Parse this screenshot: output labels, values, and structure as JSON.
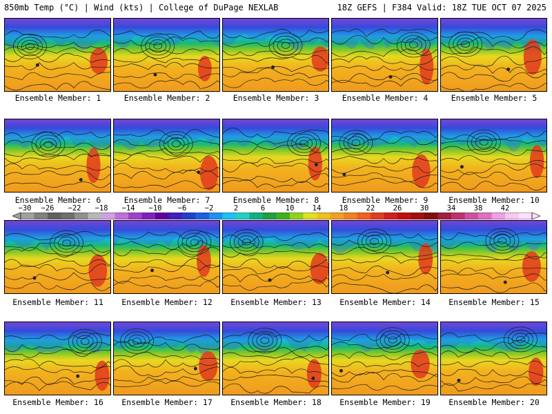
{
  "header": {
    "left": "850mb Temp (°C) | Wind (kts) | College of DuPage NEXLAB",
    "right": "18Z GEFS | F384 Valid: 18Z TUE OCT 07 2025"
  },
  "members": [
    "Ensemble Member: 1",
    "Ensemble Member: 2",
    "Ensemble Member: 3",
    "Ensemble Member: 4",
    "Ensemble Member: 5",
    "Ensemble Member: 6",
    "Ensemble Member: 7",
    "Ensemble Member: 8",
    "Ensemble Member: 9",
    "Ensemble Member: 10",
    "Ensemble Member: 11",
    "Ensemble Member: 12",
    "Ensemble Member: 13",
    "Ensemble Member: 14",
    "Ensemble Member: 15",
    "Ensemble Member: 16",
    "Ensemble Member: 17",
    "Ensemble Member: 18",
    "Ensemble Member: 19",
    "Ensemble Member: 20"
  ],
  "colorbar": {
    "tick_labels": [
      "−30",
      "−26",
      "−22",
      "−18",
      "−14",
      "−10",
      "−6",
      "−2",
      "2",
      "6",
      "10",
      "14",
      "18",
      "22",
      "26",
      "30",
      "34",
      "38",
      "42"
    ],
    "colors": [
      "#a0a0a0",
      "#808080",
      "#606060",
      "#707070",
      "#909090",
      "#b8b8b8",
      "#d0a0e0",
      "#c070d8",
      "#a040c8",
      "#8020c0",
      "#6000a0",
      "#4020c0",
      "#2040d0",
      "#2060e0",
      "#2090f0",
      "#20c0f0",
      "#20d0c0",
      "#10b080",
      "#20a040",
      "#40b020",
      "#90d020",
      "#e0e020",
      "#f0c020",
      "#f0a020",
      "#f08020",
      "#f06020",
      "#e04020",
      "#d02020",
      "#c01010",
      "#a01010",
      "#801010",
      "#a02040",
      "#c03070",
      "#d050a0",
      "#e070c0",
      "#f0a0e0",
      "#f8c8f0",
      "#ffe0ff"
    ]
  }
}
